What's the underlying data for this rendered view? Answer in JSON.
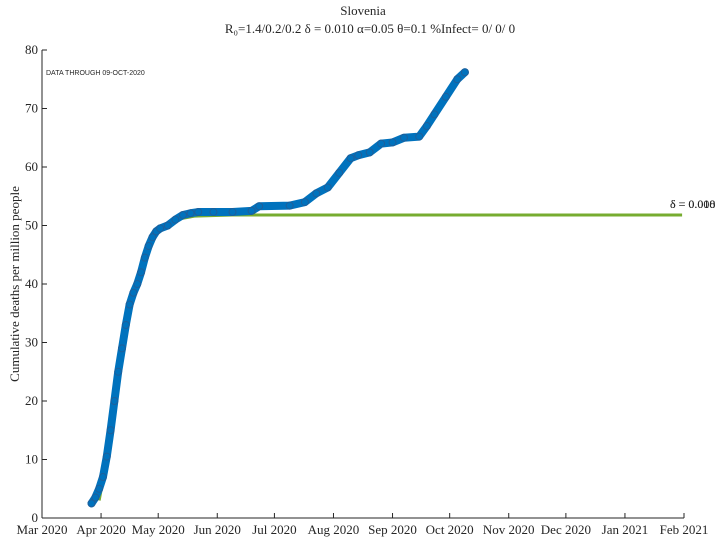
{
  "chart_data": {
    "type": "line",
    "title": "Slovenia",
    "subtitle": "R₀=1.4/0.2/0.2  δ = 0.010  α=0.05  θ=0.1  %Infect= 0/ 0/ 0",
    "y_label": "Cumulative deaths per million people",
    "annotations": [
      "DATA THROUGH 09-OCT-2020",
      "δ = 0.008",
      "δ = 0.010"
    ],
    "xlim": [
      0,
      337
    ],
    "xticks": [
      {
        "value": 0,
        "label": "Mar 2020"
      },
      {
        "value": 31,
        "label": "Apr 2020"
      },
      {
        "value": 61,
        "label": "May 2020"
      },
      {
        "value": 92,
        "label": "Jun 2020"
      },
      {
        "value": 122,
        "label": "Jul 2020"
      },
      {
        "value": 153,
        "label": "Aug 2020"
      },
      {
        "value": 184,
        "label": "Sep 2020"
      },
      {
        "value": 214,
        "label": "Oct 2020"
      },
      {
        "value": 245,
        "label": "Nov 2020"
      },
      {
        "value": 275,
        "label": "Dec 2020"
      },
      {
        "value": 306,
        "label": "Jan 2021"
      },
      {
        "value": 337,
        "label": "Feb 2021"
      }
    ],
    "ylim": [
      0,
      80
    ],
    "yticks": [
      0,
      10,
      20,
      30,
      40,
      50,
      60,
      70,
      80
    ],
    "series": [
      {
        "color": "#77ac30",
        "style": "line",
        "x": [
          30,
          34,
          40,
          50,
          60,
          70,
          80,
          100,
          336
        ],
        "values": [
          3,
          10,
          25,
          41,
          48.5,
          51,
          51.6,
          51.8,
          51.8
        ]
      },
      {
        "color": "#0072bd",
        "style": "dots",
        "x": [
          26,
          28,
          30,
          32,
          34,
          36,
          38,
          40,
          42,
          44,
          46,
          48,
          50,
          52,
          54,
          56,
          58,
          60,
          62,
          66,
          70,
          74,
          78,
          82,
          90,
          100,
          110,
          114,
          130,
          138,
          144,
          150,
          156,
          162,
          166,
          172,
          178,
          184,
          190,
          198,
          202,
          206,
          212,
          218,
          222
        ],
        "values": [
          2.5,
          3.5,
          5,
          7,
          10.5,
          15,
          20,
          25,
          29,
          33,
          36.5,
          38.5,
          40,
          42,
          44.5,
          46.5,
          48,
          49,
          49.5,
          50,
          51,
          51.8,
          52.1,
          52.3,
          52.3,
          52.3,
          52.5,
          53.3,
          53.4,
          54,
          55.5,
          56.5,
          59,
          61.5,
          62,
          62.5,
          64,
          64.2,
          65,
          65.2,
          67,
          69,
          72,
          75,
          76.2
        ]
      }
    ]
  }
}
